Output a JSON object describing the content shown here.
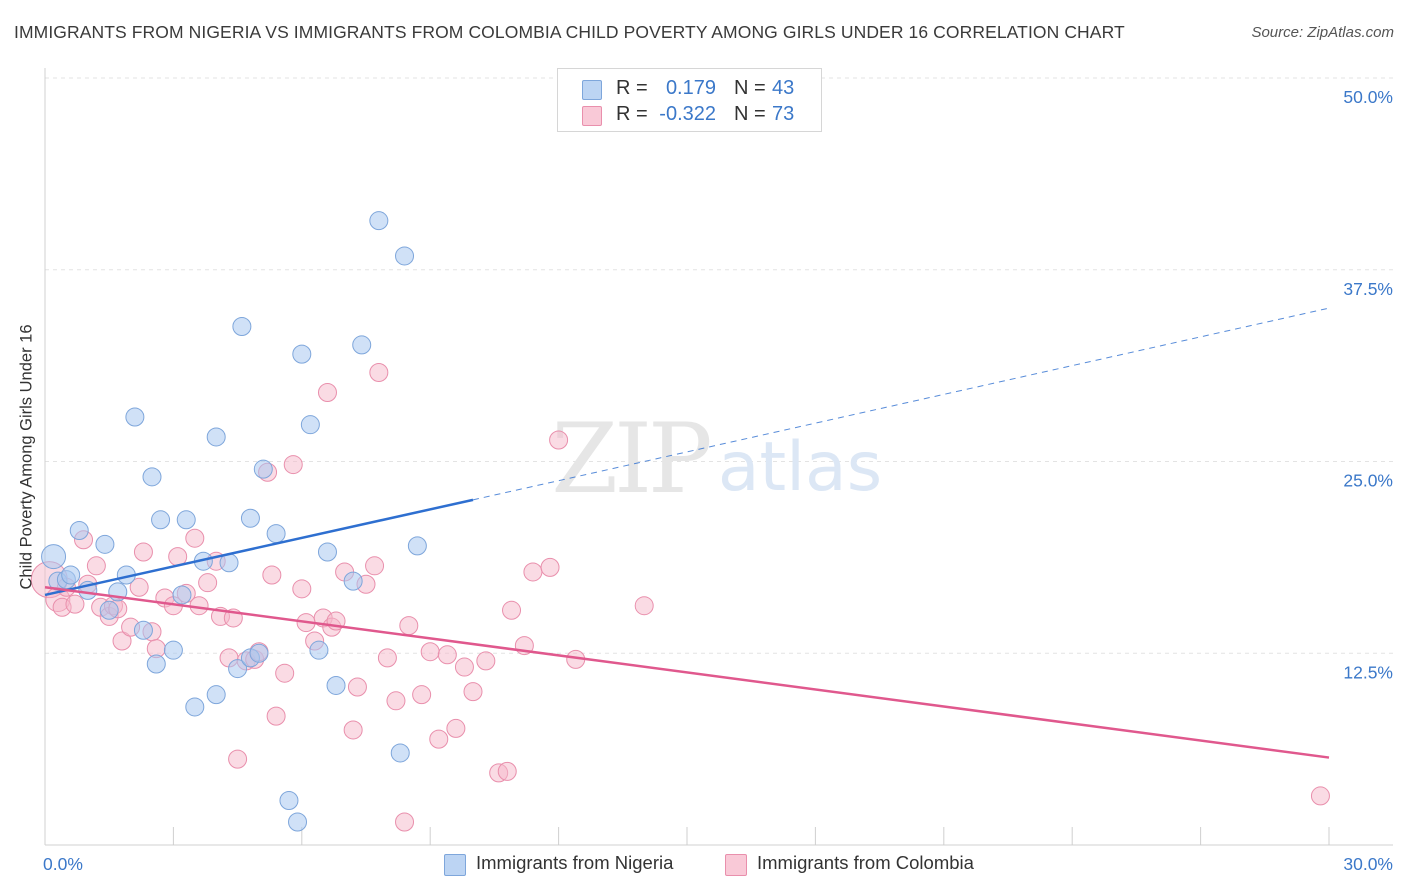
{
  "title": "IMMIGRANTS FROM NIGERIA VS IMMIGRANTS FROM COLOMBIA CHILD POVERTY AMONG GIRLS UNDER 16 CORRELATION CHART",
  "source": "Source: ZipAtlas.com",
  "watermark": {
    "zip": "ZIP",
    "atlas": "atlas"
  },
  "colors": {
    "nigeria_fill": "#a9c8f0",
    "nigeria_stroke": "#7ea6db",
    "nigeria_line": "#2e6fd0",
    "colombia_fill": "#f6b7c9",
    "colombia_stroke": "#e98fac",
    "colombia_line": "#e0588d",
    "tick_label": "#3b78c9",
    "grid": "#e3e3e3"
  },
  "legend": {
    "nigeria": {
      "r_label": "R =",
      "r_value": "0.179",
      "n_label": "N =",
      "n_value": "43"
    },
    "colombia": {
      "r_label": "R =",
      "r_value": "-0.322",
      "n_label": "N =",
      "n_value": "73"
    }
  },
  "bottom_legend": [
    "Immigrants from Nigeria",
    "Immigrants from Colombia"
  ],
  "chart_data": {
    "type": "scatter",
    "title": "IMMIGRANTS FROM NIGERIA VS IMMIGRANTS FROM COLOMBIA CHILD POVERTY AMONG GIRLS UNDER 16 CORRELATION CHART",
    "xlabel": "",
    "ylabel": "Child Poverty Among Girls Under 16",
    "xlim": [
      0,
      30
    ],
    "ylim": [
      0,
      50
    ],
    "x_tick_labels": [
      "0.0%",
      "30.0%"
    ],
    "y_ticks": [
      12.5,
      25.0,
      37.5,
      50.0
    ],
    "y_tick_labels": [
      "12.5%",
      "25.0%",
      "37.5%",
      "50.0%"
    ],
    "grid": true,
    "legend_position": "top-center",
    "series": [
      {
        "name": "Immigrants from Nigeria",
        "R": 0.179,
        "N": 43,
        "trend": {
          "x0": 0.0,
          "y0": 16.3,
          "x1": 10.0,
          "y1": 22.5,
          "dashed_to_x": 30.0,
          "dashed_to_y": 35.0
        },
        "points": [
          [
            0.2,
            18.8,
            12
          ],
          [
            0.3,
            17.2,
            9
          ],
          [
            0.5,
            17.3,
            9
          ],
          [
            0.6,
            17.6,
            9
          ],
          [
            0.8,
            20.5,
            9
          ],
          [
            1.0,
            16.6,
            9
          ],
          [
            1.4,
            19.6,
            9
          ],
          [
            1.5,
            15.3,
            9
          ],
          [
            1.7,
            16.5,
            9
          ],
          [
            1.9,
            17.6,
            9
          ],
          [
            2.1,
            27.9,
            9
          ],
          [
            2.3,
            14.0,
            9
          ],
          [
            2.5,
            24.0,
            9
          ],
          [
            2.6,
            11.8,
            9
          ],
          [
            2.7,
            21.2,
            9
          ],
          [
            3.0,
            12.7,
            9
          ],
          [
            3.2,
            16.3,
            9
          ],
          [
            3.3,
            21.2,
            9
          ],
          [
            3.5,
            9.0,
            9
          ],
          [
            3.7,
            18.5,
            9
          ],
          [
            4.0,
            9.8,
            9
          ],
          [
            4.0,
            26.6,
            9
          ],
          [
            4.3,
            18.4,
            9
          ],
          [
            4.5,
            11.5,
            9
          ],
          [
            4.6,
            33.8,
            9
          ],
          [
            4.8,
            12.2,
            9
          ],
          [
            4.8,
            21.3,
            9
          ],
          [
            5.0,
            12.5,
            9
          ],
          [
            5.1,
            24.5,
            9
          ],
          [
            5.4,
            20.3,
            9
          ],
          [
            5.7,
            2.9,
            9
          ],
          [
            5.9,
            1.5,
            9
          ],
          [
            6.0,
            32.0,
            9
          ],
          [
            6.2,
            27.4,
            9
          ],
          [
            6.4,
            12.7,
            9
          ],
          [
            6.6,
            19.1,
            9
          ],
          [
            6.8,
            10.4,
            9
          ],
          [
            7.2,
            17.2,
            9
          ],
          [
            7.4,
            32.6,
            9
          ],
          [
            7.8,
            40.7,
            9
          ],
          [
            8.3,
            6.0,
            9
          ],
          [
            8.4,
            38.4,
            9
          ],
          [
            8.7,
            19.5,
            9
          ]
        ]
      },
      {
        "name": "Immigrants from Colombia",
        "R": -0.322,
        "N": 73,
        "trend": {
          "x0": 0.0,
          "y0": 16.8,
          "x1": 30.0,
          "y1": 5.7
        },
        "points": [
          [
            0.1,
            17.3,
            18
          ],
          [
            0.3,
            16.0,
            12
          ],
          [
            0.4,
            15.5,
            9
          ],
          [
            0.5,
            16.8,
            9
          ],
          [
            0.7,
            15.7,
            9
          ],
          [
            0.9,
            19.9,
            9
          ],
          [
            1.0,
            17.0,
            9
          ],
          [
            1.2,
            18.2,
            9
          ],
          [
            1.3,
            15.5,
            9
          ],
          [
            1.5,
            14.9,
            9
          ],
          [
            1.6,
            15.6,
            9
          ],
          [
            1.7,
            15.4,
            9
          ],
          [
            1.8,
            13.3,
            9
          ],
          [
            2.0,
            14.2,
            9
          ],
          [
            2.2,
            16.8,
            9
          ],
          [
            2.3,
            19.1,
            9
          ],
          [
            2.5,
            13.9,
            9
          ],
          [
            2.6,
            12.8,
            9
          ],
          [
            2.8,
            16.1,
            9
          ],
          [
            3.0,
            15.6,
            9
          ],
          [
            3.1,
            18.8,
            9
          ],
          [
            3.3,
            16.4,
            9
          ],
          [
            3.5,
            20.0,
            9
          ],
          [
            3.6,
            15.6,
            9
          ],
          [
            3.8,
            17.1,
            9
          ],
          [
            4.0,
            18.5,
            9
          ],
          [
            4.1,
            14.9,
            9
          ],
          [
            4.3,
            12.2,
            9
          ],
          [
            4.4,
            14.8,
            9
          ],
          [
            4.5,
            5.6,
            9
          ],
          [
            4.7,
            12.0,
            9
          ],
          [
            4.9,
            12.1,
            9
          ],
          [
            5.0,
            12.6,
            9
          ],
          [
            5.2,
            24.3,
            9
          ],
          [
            5.3,
            17.6,
            9
          ],
          [
            5.4,
            8.4,
            9
          ],
          [
            5.6,
            11.2,
            9
          ],
          [
            5.8,
            24.8,
            9
          ],
          [
            6.0,
            16.7,
            9
          ],
          [
            6.1,
            14.5,
            9
          ],
          [
            6.3,
            13.3,
            9
          ],
          [
            6.5,
            14.8,
            9
          ],
          [
            6.6,
            29.5,
            9
          ],
          [
            6.7,
            14.2,
            9
          ],
          [
            6.8,
            14.6,
            9
          ],
          [
            7.0,
            17.8,
            9
          ],
          [
            7.2,
            7.5,
            9
          ],
          [
            7.3,
            10.3,
            9
          ],
          [
            7.5,
            17.0,
            9
          ],
          [
            7.7,
            18.2,
            9
          ],
          [
            7.8,
            30.8,
            9
          ],
          [
            8.0,
            12.2,
            9
          ],
          [
            8.2,
            9.4,
            9
          ],
          [
            8.4,
            1.5,
            9
          ],
          [
            8.5,
            14.3,
            9
          ],
          [
            8.8,
            9.8,
            9
          ],
          [
            9.0,
            12.6,
            9
          ],
          [
            9.2,
            6.9,
            9
          ],
          [
            9.4,
            12.4,
            9
          ],
          [
            9.6,
            7.6,
            9
          ],
          [
            9.8,
            11.6,
            9
          ],
          [
            10.0,
            10.0,
            9
          ],
          [
            10.3,
            12.0,
            9
          ],
          [
            10.6,
            4.7,
            9
          ],
          [
            10.8,
            4.8,
            9
          ],
          [
            10.9,
            15.3,
            9
          ],
          [
            11.2,
            13.0,
            9
          ],
          [
            11.4,
            17.8,
            9
          ],
          [
            11.8,
            18.1,
            9
          ],
          [
            12.0,
            26.4,
            9
          ],
          [
            12.4,
            12.1,
            9
          ],
          [
            14.0,
            15.6,
            9
          ],
          [
            29.8,
            3.2,
            9
          ]
        ]
      }
    ]
  }
}
